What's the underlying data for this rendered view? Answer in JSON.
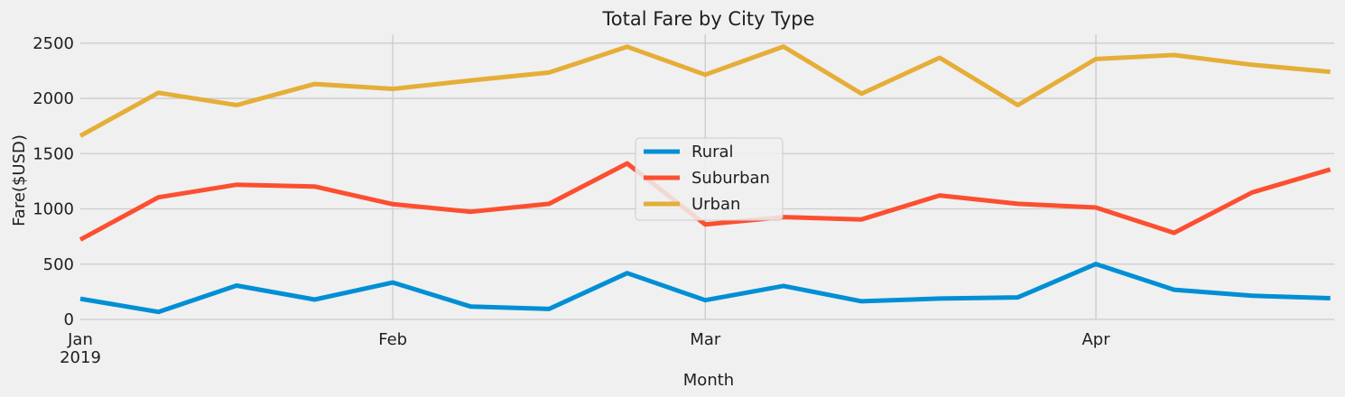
{
  "chart_data": {
    "type": "line",
    "title": "Total Fare by City Type",
    "xlabel": "Month",
    "ylabel": "Fare($USD)",
    "year_label": "2019",
    "ylim": [
      0,
      2580
    ],
    "yticks": [
      0,
      500,
      1000,
      1500,
      2000,
      2500
    ],
    "x_tick_labels": [
      {
        "label": "Jan",
        "index": 0
      },
      {
        "label": "Feb",
        "index": 4
      },
      {
        "label": "Mar",
        "index": 8
      },
      {
        "label": "Apr",
        "index": 13
      }
    ],
    "x_count": 17,
    "x_max_index": 16.05,
    "legend": {
      "location": "center"
    },
    "grid": true,
    "series": [
      {
        "name": "Rural",
        "color": "#008fd5",
        "values": [
          187,
          68,
          306,
          180,
          334,
          116,
          95,
          419,
          174,
          303,
          164,
          189,
          199,
          501,
          269,
          214,
          192
        ]
      },
      {
        "name": "Suburban",
        "color": "#fc4f30",
        "values": [
          722,
          1105,
          1219,
          1203,
          1043,
          974,
          1046,
          1412,
          859,
          926,
          905,
          1122,
          1046,
          1012,
          783,
          1149,
          1357
        ]
      },
      {
        "name": "Urban",
        "color": "#e5ae38",
        "values": [
          1661,
          2051,
          1939,
          2130,
          2086,
          2163,
          2234,
          2467,
          2214,
          2469,
          2042,
          2368,
          1939,
          2356,
          2392,
          2304,
          2240
        ]
      }
    ]
  }
}
